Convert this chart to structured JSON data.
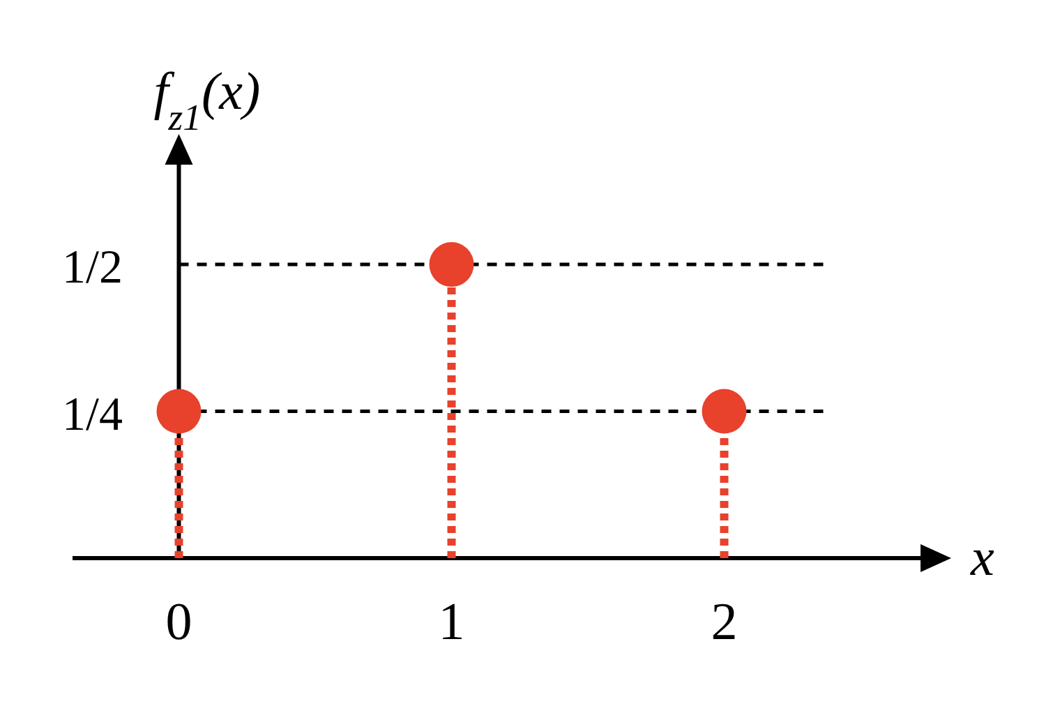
{
  "chart_data": {
    "type": "lollipop",
    "xlabel": "x",
    "ylabel": "f$_{z1}$(x)",
    "x": [
      0,
      1,
      2
    ],
    "series": [
      {
        "color": "#e8412c",
        "values": [
          0.25,
          0.5,
          0.25
        ]
      }
    ],
    "xlim": [
      -0.39,
      2.72
    ],
    "ylim": [
      0,
      0.67
    ],
    "xticks": [
      0,
      1,
      2
    ],
    "yticks": [
      {
        "value": 0.25,
        "label": "1/4"
      },
      {
        "value": 0.5,
        "label": "1/2"
      }
    ],
    "grid": "y",
    "marker": "circle",
    "line_style": "dotted"
  }
}
